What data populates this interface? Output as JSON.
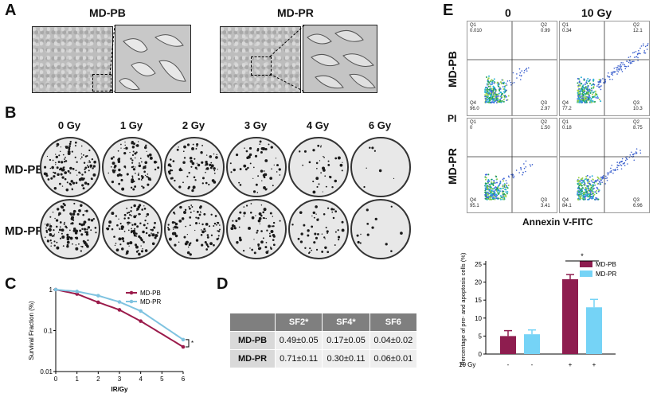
{
  "panels": {
    "a": "A",
    "b": "B",
    "c": "C",
    "d": "D",
    "e": "E"
  },
  "panel_a": {
    "left_title": "MD-PB",
    "right_title": "MD-PR"
  },
  "panel_b": {
    "doses": [
      "0 Gy",
      "1 Gy",
      "2 Gy",
      "3 Gy",
      "4 Gy",
      "6 Gy"
    ],
    "rows": [
      "MD-PB",
      "MD-PR"
    ],
    "density": [
      [
        0.85,
        0.75,
        0.55,
        0.4,
        0.25,
        0.05
      ],
      [
        0.9,
        0.8,
        0.65,
        0.5,
        0.35,
        0.1
      ]
    ]
  },
  "panel_c": {
    "star": "*"
  },
  "panel_d": {
    "headers": [
      "",
      "SF2*",
      "SF4*",
      "SF6"
    ],
    "rows": [
      [
        "MD-PB",
        "0.49±0.05",
        "0.17±0.05",
        "0.04±0.02"
      ],
      [
        "MD-PR",
        "0.71±0.11",
        "0.30±0.11",
        "0.06±0.01"
      ]
    ]
  },
  "panel_e": {
    "col_titles": [
      "0",
      "10 Gy"
    ],
    "row_titles": [
      "MD-PB",
      "MD-PR"
    ],
    "ylabel": "PI",
    "xlabel": "Annexin V-FITC",
    "quadrants": [
      [
        [
          "Q1",
          "0.010"
        ],
        [
          "Q2",
          "0.99"
        ],
        [
          "Q4",
          "96.0"
        ],
        [
          "Q3",
          "2.97"
        ]
      ],
      [
        [
          "Q1",
          "0.34"
        ],
        [
          "Q2",
          "12.1"
        ],
        [
          "Q4",
          "77.2"
        ],
        [
          "Q3",
          "10.3"
        ]
      ],
      [
        [
          "Q1",
          "0"
        ],
        [
          "Q2",
          "1.50"
        ],
        [
          "Q4",
          "95.1"
        ],
        [
          "Q3",
          "3.41"
        ]
      ],
      [
        [
          "Q1",
          "0.18"
        ],
        [
          "Q2",
          "8.75"
        ],
        [
          "Q4",
          "84.1"
        ],
        [
          "Q3",
          "6.96"
        ]
      ]
    ]
  },
  "chart_data": [
    {
      "type": "line",
      "title": "",
      "xlabel": "IR/Gy",
      "ylabel": "Survival Fraction  (%)",
      "yscale": "log",
      "ylim": [
        0.01,
        1
      ],
      "xlim": [
        0,
        6
      ],
      "xticks": [
        0,
        1,
        2,
        3,
        4,
        5,
        6
      ],
      "yticks": [
        "1",
        "0.1",
        "0.01"
      ],
      "legend_position": "top-right",
      "series": [
        {
          "name": "MD-PB",
          "color": "#9b1b4b",
          "x": [
            0,
            1,
            2,
            3,
            4,
            6
          ],
          "y": [
            1.0,
            0.78,
            0.49,
            0.32,
            0.17,
            0.04
          ]
        },
        {
          "name": "MD-PR",
          "color": "#7fc3e0",
          "x": [
            0,
            1,
            2,
            3,
            4,
            6
          ],
          "y": [
            1.0,
            0.9,
            0.71,
            0.5,
            0.3,
            0.06
          ]
        }
      ],
      "annotation": "*"
    },
    {
      "type": "bar",
      "ylabel": "Percentage of pre- and apoptosis cells (%)",
      "ylim": [
        0,
        25
      ],
      "yticks": [
        0,
        5,
        10,
        15,
        20,
        25
      ],
      "legend_position": "top-right",
      "row_label": "10 Gy",
      "condition_labels": [
        "-",
        "-",
        "+",
        "+"
      ],
      "series": [
        {
          "name": "MD-PB",
          "color": "#8e1d4f",
          "values": [
            5.0,
            20.8
          ],
          "errors": [
            1.5,
            1.3
          ]
        },
        {
          "name": "MD-PR",
          "color": "#75d3f6",
          "values": [
            5.5,
            13.0
          ],
          "errors": [
            1.2,
            2.2
          ]
        }
      ],
      "annotation": "*"
    }
  ]
}
